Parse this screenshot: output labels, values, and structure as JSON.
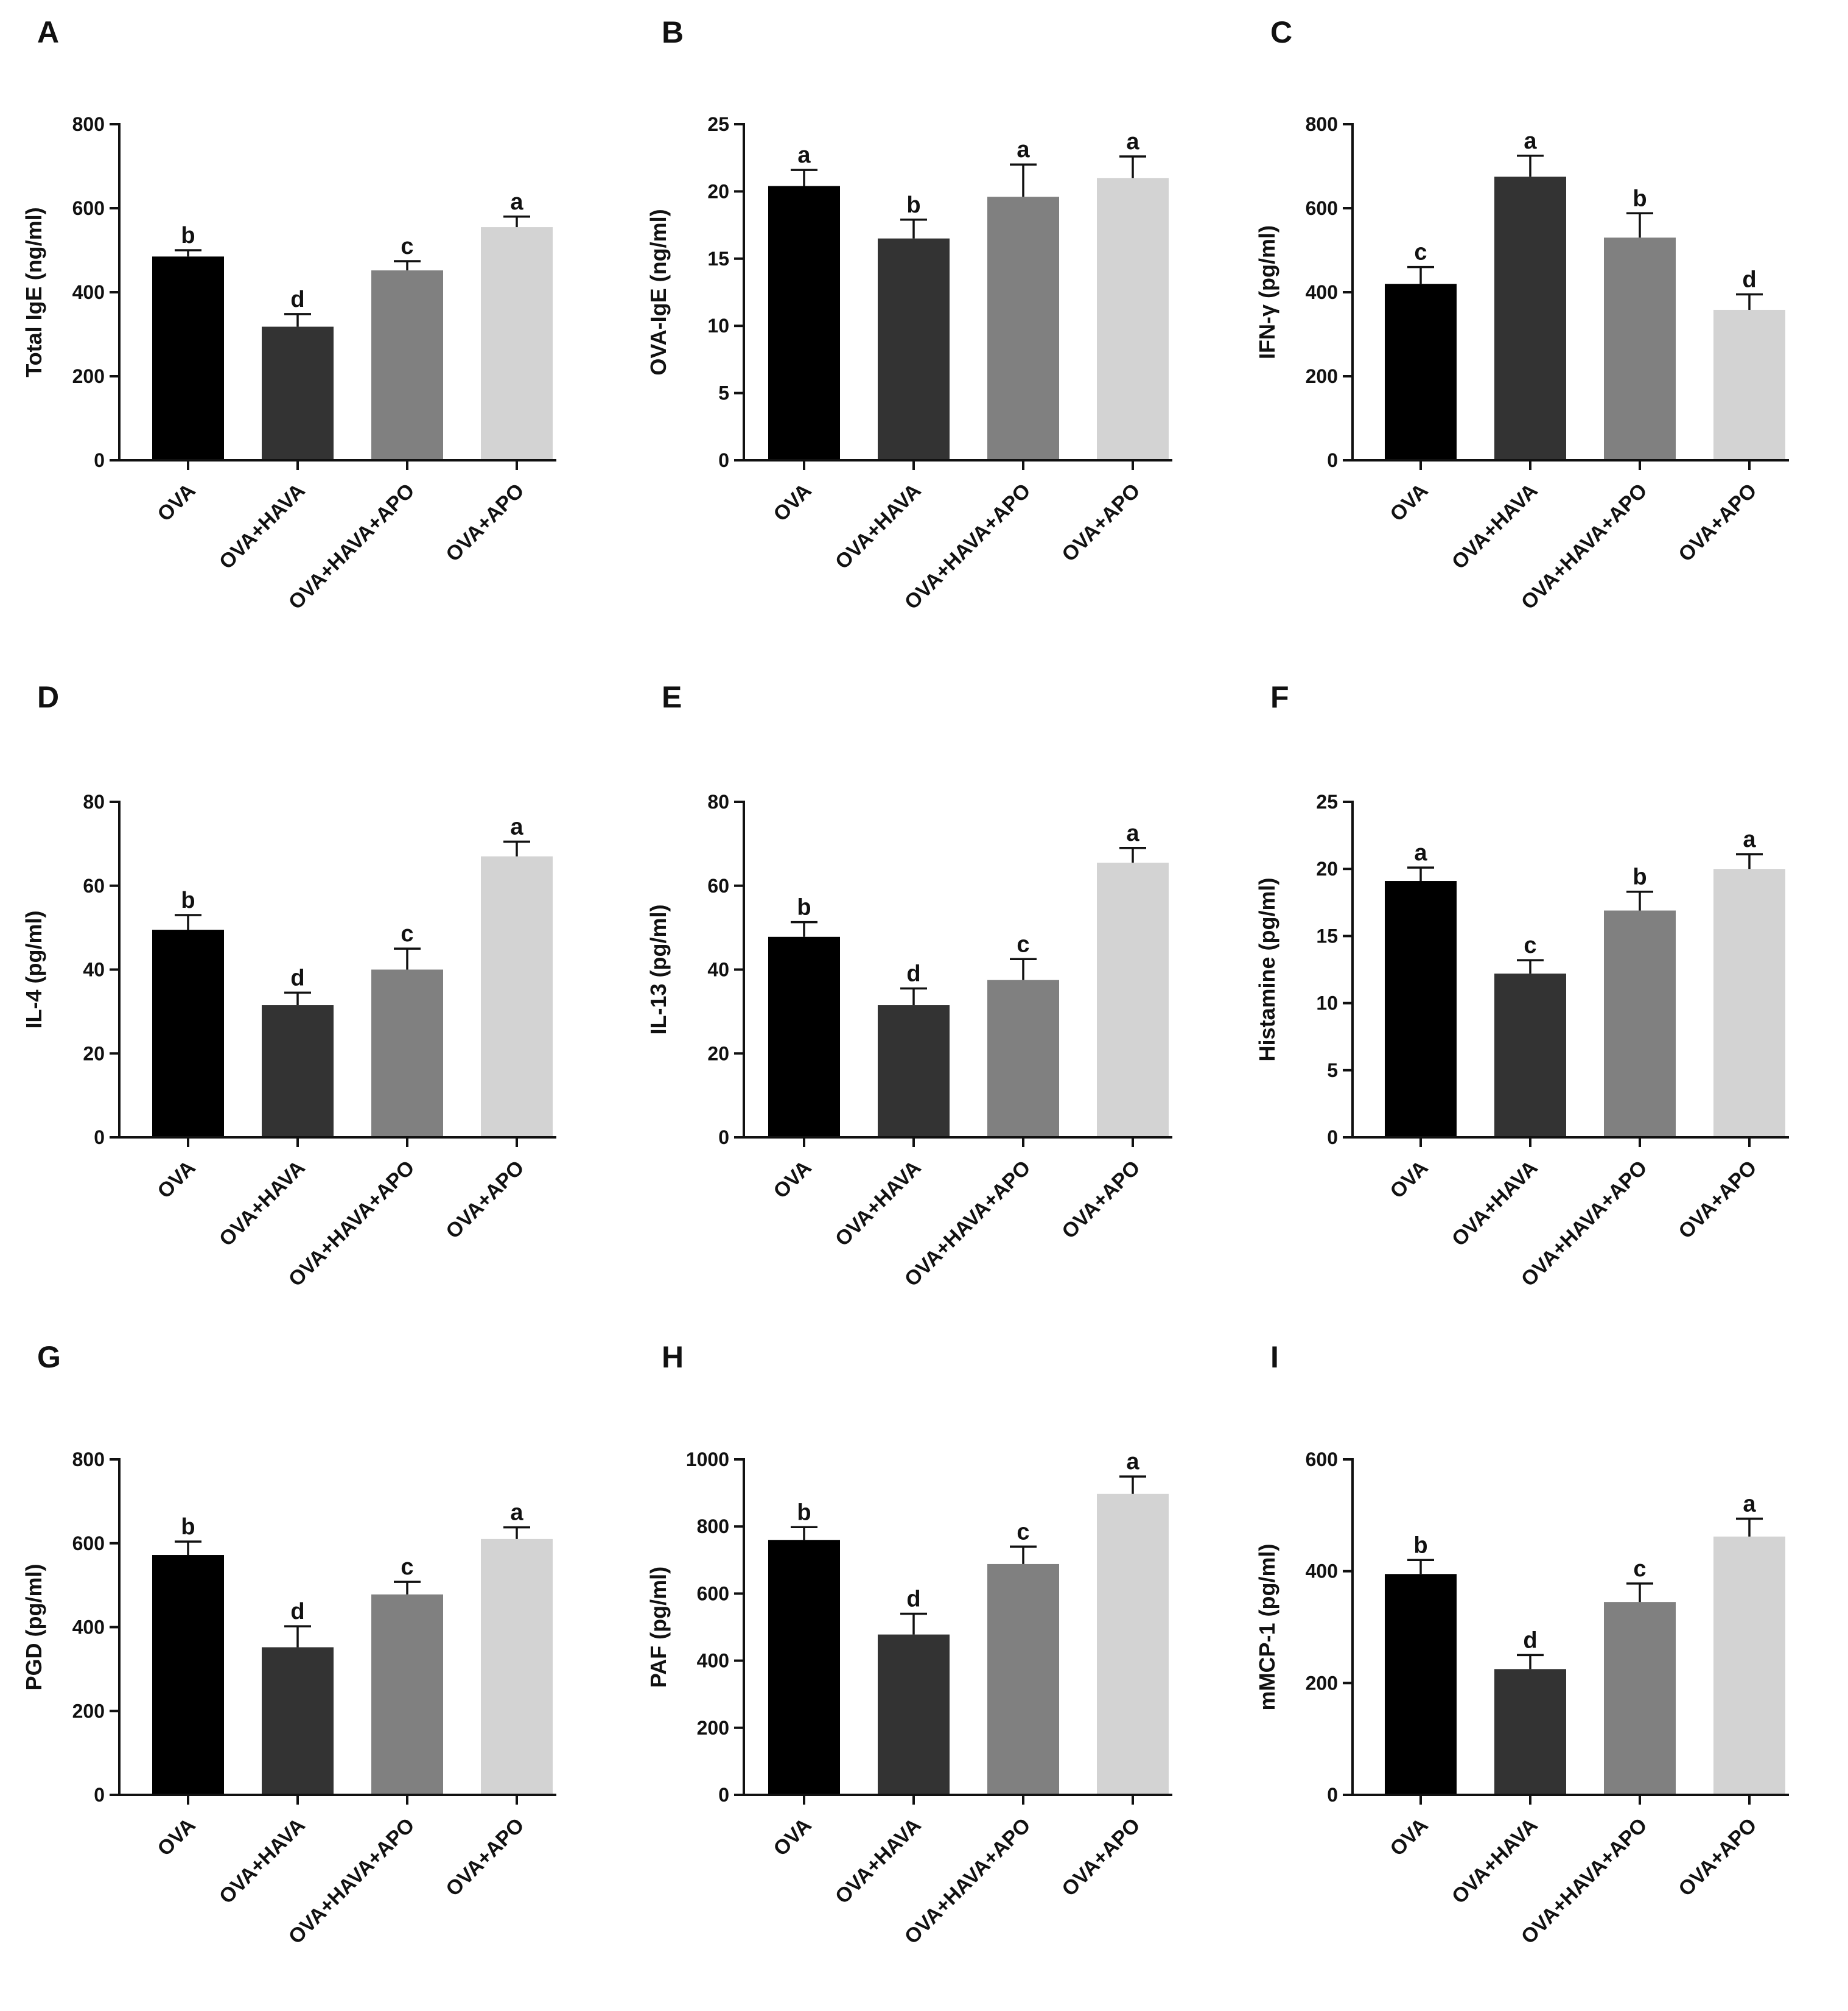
{
  "colors": {
    "bar_fills": [
      "#000000",
      "#333333",
      "#808080",
      "#d3d3d3"
    ],
    "axis": "#111111",
    "text": "#111111"
  },
  "chart_data": [
    {
      "panel": "A",
      "type": "bar",
      "categories": [
        "OVA",
        "OVA+HAVA",
        "OVA+HAVA+APO",
        "OVA+APO"
      ],
      "values": [
        485,
        318,
        452,
        555
      ],
      "errors": [
        15,
        30,
        22,
        25
      ],
      "significance": [
        "b",
        "d",
        "c",
        "a"
      ],
      "ylabel": "Total IgE (ng/ml)",
      "ylim": [
        0,
        800
      ],
      "yticks": [
        0,
        200,
        400,
        600,
        800
      ]
    },
    {
      "panel": "B",
      "type": "bar",
      "categories": [
        "OVA",
        "OVA+HAVA",
        "OVA+HAVA+APO",
        "OVA+APO"
      ],
      "values": [
        20.4,
        16.5,
        19.6,
        21.0
      ],
      "errors": [
        1.2,
        1.4,
        2.4,
        1.6
      ],
      "significance": [
        "a",
        "b",
        "a",
        "a"
      ],
      "ylabel": "OVA-IgE (ng/ml)",
      "ylim": [
        0,
        25
      ],
      "yticks": [
        0,
        5,
        10,
        15,
        20,
        25
      ]
    },
    {
      "panel": "C",
      "type": "bar",
      "categories": [
        "OVA",
        "OVA+HAVA",
        "OVA+HAVA+APO",
        "OVA+APO"
      ],
      "values": [
        420,
        675,
        530,
        358
      ],
      "errors": [
        40,
        50,
        58,
        37
      ],
      "significance": [
        "c",
        "a",
        "b",
        "d"
      ],
      "ylabel": "IFN-γ (pg/ml)",
      "ylim": [
        0,
        800
      ],
      "yticks": [
        0,
        200,
        400,
        600,
        800
      ]
    },
    {
      "panel": "D",
      "type": "bar",
      "categories": [
        "OVA",
        "OVA+HAVA",
        "OVA+HAVA+APO",
        "OVA+APO"
      ],
      "values": [
        49.5,
        31.5,
        40.0,
        67.0
      ],
      "errors": [
        3.5,
        3.0,
        5.0,
        3.5
      ],
      "significance": [
        "b",
        "d",
        "c",
        "a"
      ],
      "ylabel": "IL-4 (pg/ml)",
      "ylim": [
        0,
        80
      ],
      "yticks": [
        0,
        20,
        40,
        60,
        80
      ]
    },
    {
      "panel": "E",
      "type": "bar",
      "categories": [
        "OVA",
        "OVA+HAVA",
        "OVA+HAVA+APO",
        "OVA+APO"
      ],
      "values": [
        47.8,
        31.5,
        37.5,
        65.5
      ],
      "errors": [
        3.5,
        4.0,
        5.0,
        3.5
      ],
      "significance": [
        "b",
        "d",
        "c",
        "a"
      ],
      "ylabel": "IL-13 (pg/ml)",
      "ylim": [
        0,
        80
      ],
      "yticks": [
        0,
        20,
        40,
        60,
        80
      ]
    },
    {
      "panel": "F",
      "type": "bar",
      "categories": [
        "OVA",
        "OVA+HAVA",
        "OVA+HAVA+APO",
        "OVA+APO"
      ],
      "values": [
        19.1,
        12.2,
        16.9,
        20.0
      ],
      "errors": [
        1.0,
        1.0,
        1.4,
        1.1
      ],
      "significance": [
        "a",
        "c",
        "b",
        "a"
      ],
      "ylabel": "Histamine (pg/ml)",
      "ylim": [
        0,
        25
      ],
      "yticks": [
        0,
        5,
        10,
        15,
        20,
        25
      ]
    },
    {
      "panel": "G",
      "type": "bar",
      "categories": [
        "OVA",
        "OVA+HAVA",
        "OVA+HAVA+APO",
        "OVA+APO"
      ],
      "values": [
        572,
        352,
        478,
        610
      ],
      "errors": [
        32,
        50,
        30,
        28
      ],
      "significance": [
        "b",
        "d",
        "c",
        "a"
      ],
      "ylabel": "PGD (pg/ml)",
      "ylim": [
        0,
        800
      ],
      "yticks": [
        0,
        200,
        400,
        600,
        800
      ]
    },
    {
      "panel": "H",
      "type": "bar",
      "categories": [
        "OVA",
        "OVA+HAVA",
        "OVA+HAVA+APO",
        "OVA+APO"
      ],
      "values": [
        760,
        478,
        688,
        897
      ],
      "errors": [
        38,
        62,
        52,
        52
      ],
      "significance": [
        "b",
        "d",
        "c",
        "a"
      ],
      "ylabel": "PAF (pg/ml)",
      "ylim": [
        0,
        1000
      ],
      "yticks": [
        0,
        200,
        400,
        600,
        800,
        1000
      ]
    },
    {
      "panel": "I",
      "type": "bar",
      "categories": [
        "OVA",
        "OVA+HAVA",
        "OVA+HAVA+APO",
        "OVA+APO"
      ],
      "values": [
        395,
        225,
        345,
        462
      ],
      "errors": [
        25,
        25,
        33,
        32
      ],
      "significance": [
        "b",
        "d",
        "c",
        "a"
      ],
      "ylabel": "mMCP-1 (pg/ml)",
      "ylim": [
        0,
        600
      ],
      "yticks": [
        0,
        200,
        400,
        600
      ]
    }
  ]
}
